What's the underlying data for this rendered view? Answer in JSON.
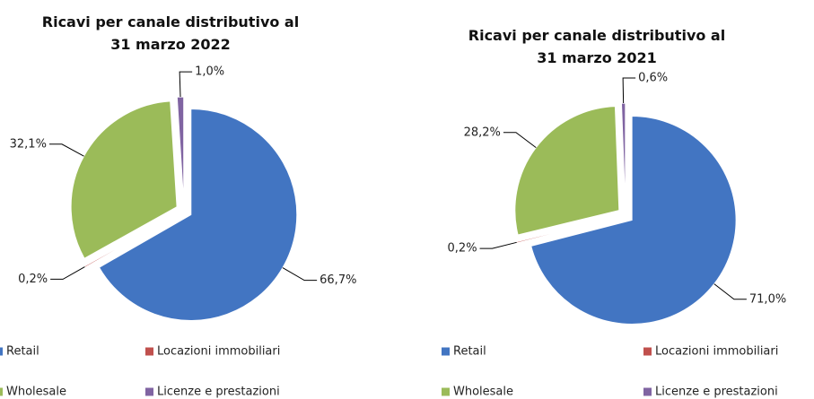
{
  "chart_data": [
    {
      "type": "pie",
      "title": "Ricavi per canale distributivo al 31 marzo 2022",
      "categories": [
        "Retail",
        "Locazioni immobiliari",
        "Wholesale",
        "Licenze e prestazioni"
      ],
      "values": [
        66.7,
        0.2,
        32.1,
        1.0
      ],
      "value_labels": [
        "66,7%",
        "0,2%",
        "32,1%",
        "1,0%"
      ],
      "colors": [
        "#4275c2",
        "#c0504d",
        "#9bbb59",
        "#8064a2"
      ]
    },
    {
      "type": "pie",
      "title": "Ricavi per canale distributivo al 31 marzo 2021",
      "categories": [
        "Retail",
        "Locazioni immobiliari",
        "Wholesale",
        "Licenze e prestazioni"
      ],
      "values": [
        71.0,
        0.2,
        28.2,
        0.6
      ],
      "value_labels": [
        "71,0%",
        "0,2%",
        "28,2%",
        "0,6%"
      ],
      "colors": [
        "#4275c2",
        "#c0504d",
        "#9bbb59",
        "#8064a2"
      ]
    }
  ]
}
